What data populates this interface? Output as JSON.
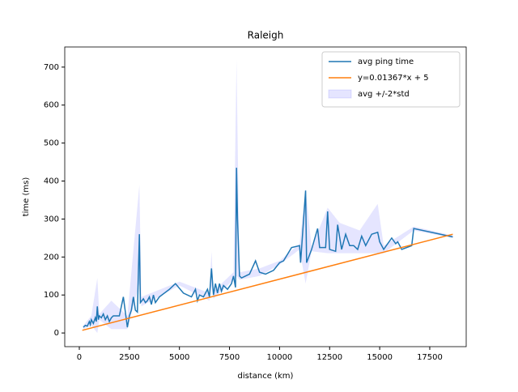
{
  "chart_data": {
    "type": "line",
    "title": "Raleigh",
    "xlabel": "distance (km)",
    "ylabel": "time (ms)",
    "xlim": [
      -727,
      19320
    ],
    "ylim": [
      -36,
      753
    ],
    "xticks": [
      0,
      2500,
      5000,
      7500,
      10000,
      12500,
      15000,
      17500
    ],
    "yticks": [
      0,
      100,
      200,
      300,
      400,
      500,
      600,
      700
    ],
    "legend": "upper right",
    "band": {
      "name": "avg +/-2*std",
      "color": "#0000ff",
      "x": [
        200,
        600,
        900,
        1000,
        1600,
        2400,
        3000,
        3100,
        5000,
        6500,
        6600,
        6700,
        7700,
        7850,
        8000,
        9000,
        10000,
        11000,
        11300,
        11600,
        12400,
        13000,
        14000,
        14900,
        15200,
        16700,
        18650
      ],
      "upper": [
        20,
        45,
        145,
        50,
        85,
        45,
        390,
        95,
        135,
        105,
        215,
        110,
        160,
        720,
        160,
        170,
        190,
        235,
        380,
        225,
        330,
        290,
        270,
        340,
        230,
        280,
        257
      ],
      "lower": [
        10,
        20,
        0,
        35,
        10,
        10,
        130,
        70,
        125,
        85,
        125,
        90,
        140,
        150,
        140,
        150,
        180,
        220,
        130,
        215,
        210,
        210,
        210,
        210,
        210,
        270,
        250
      ]
    },
    "series": [
      {
        "name": "avg ping time",
        "color": "#1f77b4",
        "x": [
          200,
          300,
          400,
          500,
          550,
          600,
          700,
          800,
          850,
          900,
          950,
          1000,
          1100,
          1200,
          1300,
          1400,
          1500,
          1600,
          1700,
          1800,
          2000,
          2200,
          2400,
          2500,
          2600,
          2700,
          2800,
          2900,
          3000,
          3050,
          3200,
          3300,
          3400,
          3500,
          3600,
          3700,
          3800,
          4000,
          4500,
          4800,
          5200,
          5600,
          5800,
          5900,
          6000,
          6200,
          6400,
          6500,
          6600,
          6700,
          6800,
          6900,
          7000,
          7100,
          7200,
          7400,
          7600,
          7700,
          7800,
          7850,
          7900,
          8000,
          8100,
          8300,
          8500,
          8800,
          9000,
          9300,
          9700,
          10000,
          10200,
          10600,
          11000,
          11050,
          11300,
          11350,
          11600,
          11900,
          12000,
          12300,
          12400,
          12500,
          12800,
          12900,
          13100,
          13300,
          13500,
          13700,
          13900,
          14100,
          14300,
          14600,
          14900,
          15000,
          15200,
          15600,
          15800,
          15900,
          16100,
          16600,
          16700,
          18650
        ],
        "values": [
          15,
          20,
          18,
          30,
          22,
          35,
          25,
          40,
          30,
          70,
          35,
          45,
          40,
          50,
          35,
          45,
          30,
          40,
          45,
          45,
          45,
          95,
          15,
          45,
          60,
          95,
          60,
          55,
          260,
          80,
          90,
          80,
          85,
          95,
          75,
          100,
          80,
          95,
          115,
          130,
          105,
          95,
          115,
          85,
          100,
          95,
          115,
          95,
          170,
          100,
          130,
          105,
          130,
          110,
          125,
          115,
          130,
          150,
          120,
          435,
          300,
          150,
          145,
          150,
          155,
          190,
          160,
          155,
          165,
          185,
          190,
          225,
          230,
          185,
          375,
          185,
          220,
          275,
          225,
          225,
          320,
          220,
          215,
          285,
          220,
          260,
          230,
          230,
          220,
          255,
          230,
          260,
          265,
          240,
          220,
          250,
          235,
          240,
          220,
          230,
          275,
          253
        ]
      },
      {
        "name": "y=0.01367*x + 5",
        "color": "#ff7f0e",
        "x": [
          150,
          18650
        ],
        "values": [
          7,
          260
        ]
      }
    ]
  }
}
